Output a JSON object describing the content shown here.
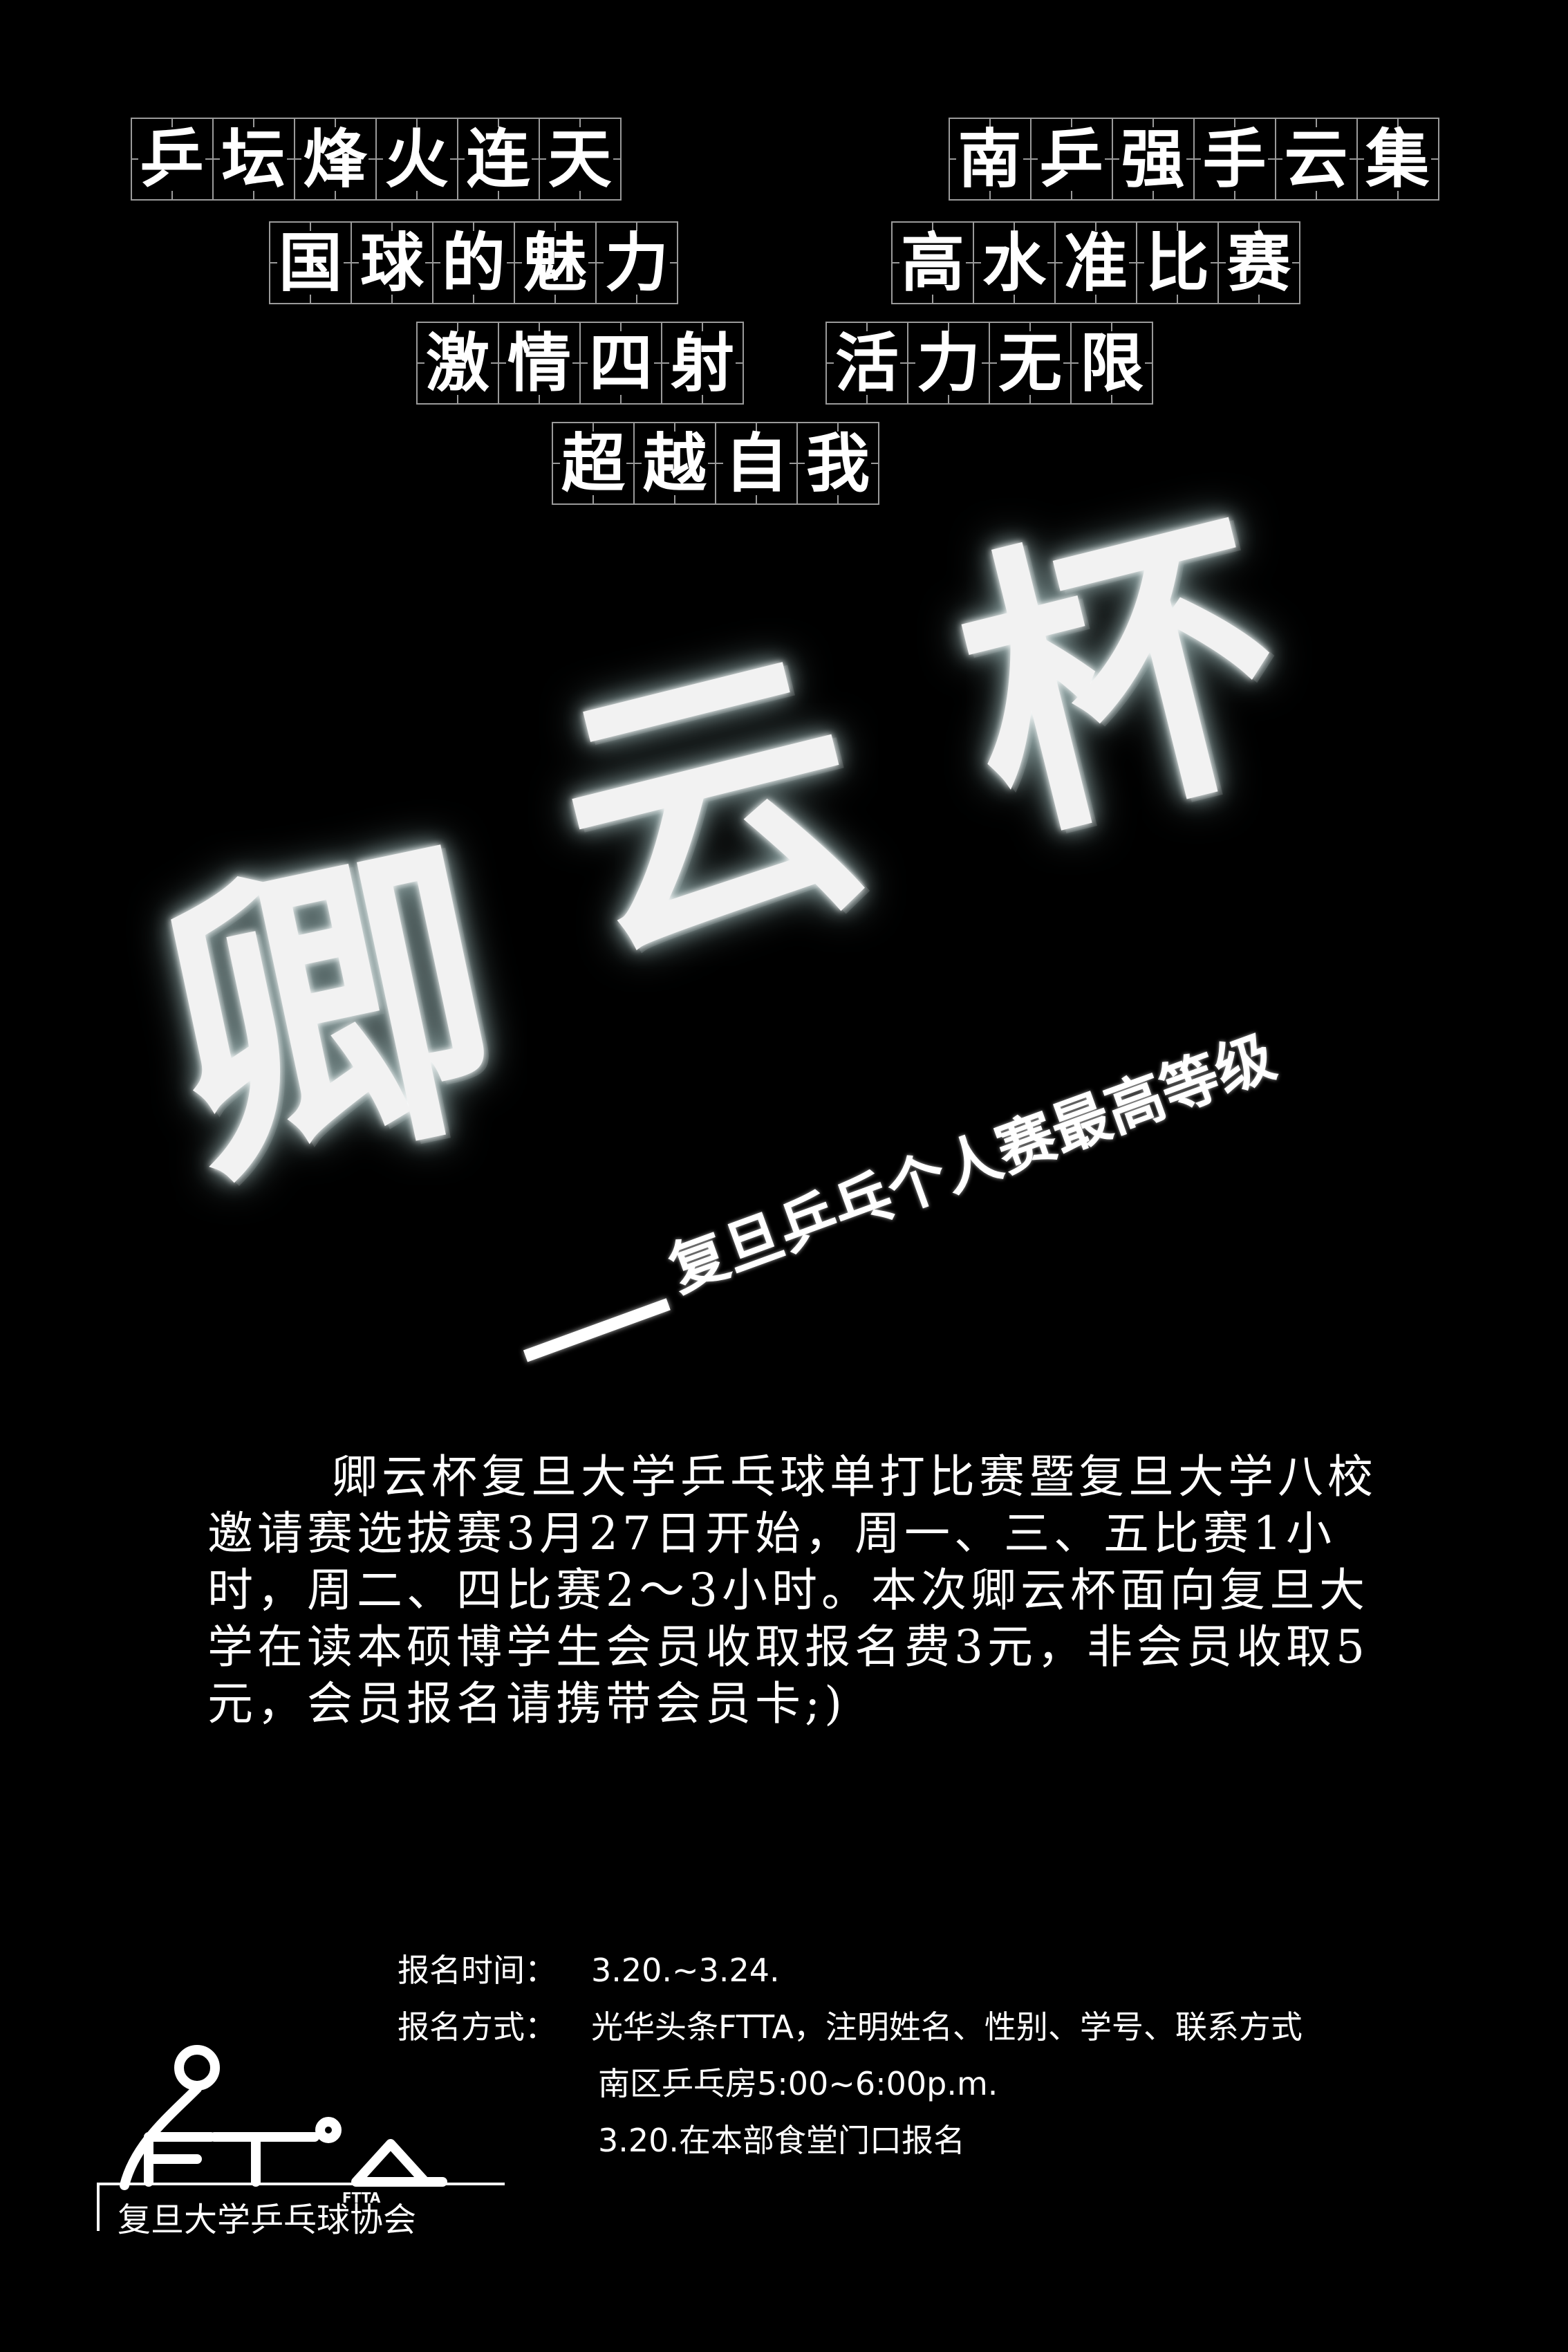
{
  "slogans": [
    {
      "left": "乒坛烽火连天",
      "right": "南乒强手云集"
    },
    {
      "left": "国球的魅力",
      "right": "高水准比赛"
    },
    {
      "left": "激情四射",
      "right": "活力无限"
    },
    {
      "left": "超越自我",
      "right": ""
    }
  ],
  "title": {
    "chars": [
      "卿",
      "云",
      "杯"
    ],
    "subtitle": "复旦乒乓个人赛最高等级"
  },
  "body": {
    "paragraph": "卿云杯复旦大学乒乓球单打比赛暨复旦大学八校邀请赛选拔赛3月27日开始，周一、三、五比赛1小时，周二、四比赛2～3小时。本次卿云杯面向复旦大学在读本硕博学生会员收取报名费3元，非会员收取5元，会员报名请携带会员卡;)"
  },
  "registration": {
    "time_label": "报名时间：",
    "time_value": "3.20.~3.24.",
    "method_label": "报名方式：",
    "method_line1": "光华头条FTTA，注明姓名、性别、学号、联系方式",
    "method_line2": "南区乒乓房5:00~6:00p.m.",
    "method_line3": "3.20.在本部食堂门口报名"
  },
  "logo": {
    "mark": "FTTA",
    "caption": "复旦大学乒乓球协会"
  }
}
